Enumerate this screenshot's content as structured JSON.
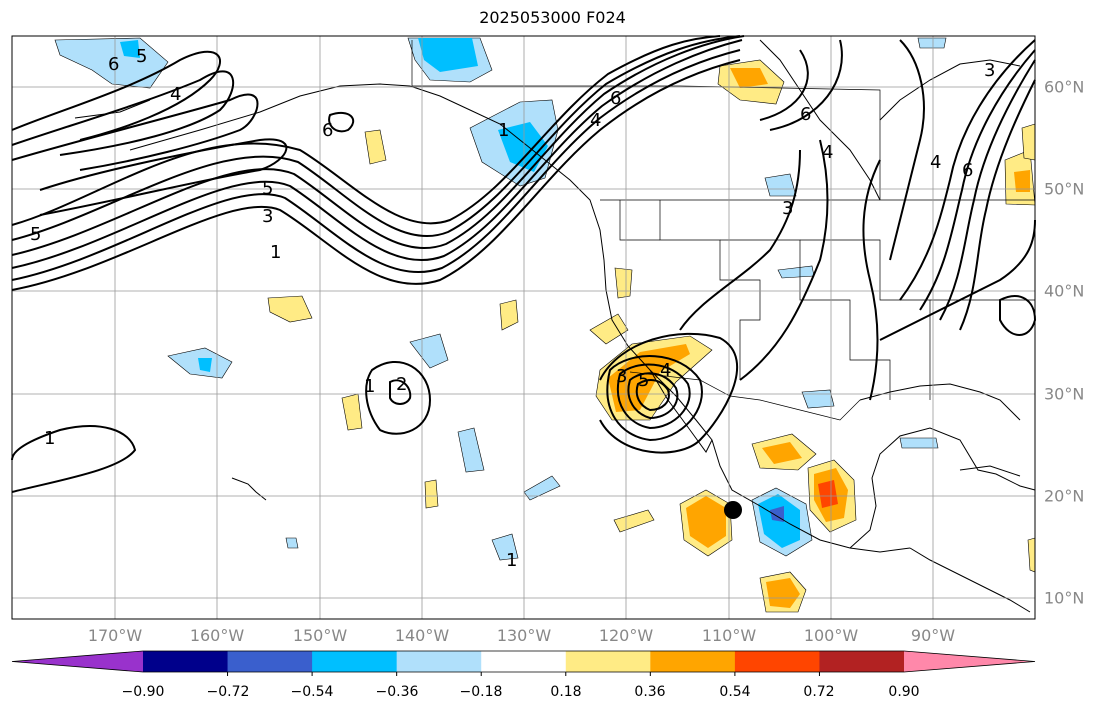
{
  "title": "2025053000 F024",
  "lon_labels": [
    "170°W",
    "160°W",
    "150°W",
    "140°W",
    "130°W",
    "120°W",
    "110°W",
    "100°W",
    "90°W"
  ],
  "lat_labels": [
    "60°N",
    "50°N",
    "40°N",
    "30°N",
    "20°N",
    "10°N"
  ],
  "colorbar": {
    "colors": [
      "#9932cc",
      "#00008b",
      "#3a5fcd",
      "#00bfff",
      "#b0e0fb",
      "#ffffff",
      "#ffeb85",
      "#ffa500",
      "#ff4500",
      "#b22222",
      "#ff88aa"
    ],
    "ticks": [
      "−0.90",
      "−0.72",
      "−0.54",
      "−0.36",
      "−0.18",
      "0.18",
      "0.36",
      "0.54",
      "0.72",
      "0.90"
    ]
  },
  "contour_labels": [
    "6",
    "5",
    "4",
    "6",
    "5",
    "3",
    "1",
    "5",
    "6",
    "4",
    "1",
    "6",
    "4",
    "3",
    "3",
    "6",
    "4",
    "2",
    "1",
    "3",
    "5",
    "4",
    "1",
    "1"
  ],
  "storm_marker": "black-dot"
}
